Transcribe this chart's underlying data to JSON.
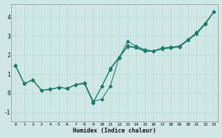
{
  "xlabel": "Humidex (Indice chaleur)",
  "background_color": "#cfe8e5",
  "grid_color": "#b8d8d5",
  "line_color": "#1e7b6e",
  "xlim": [
    -0.5,
    23.5
  ],
  "ylim": [
    -1.5,
    4.7
  ],
  "yticks": [
    -1,
    0,
    1,
    2,
    3,
    4
  ],
  "xticks": [
    0,
    1,
    2,
    3,
    4,
    5,
    6,
    7,
    8,
    9,
    10,
    11,
    12,
    13,
    14,
    15,
    16,
    17,
    18,
    19,
    20,
    21,
    22,
    23
  ],
  "series": [
    [
      1.45,
      0.5,
      0.7,
      0.15,
      0.2,
      0.3,
      0.25,
      0.45,
      0.5,
      -0.5,
      0.35,
      1.25,
      1.85,
      2.45,
      2.38,
      2.2,
      2.2,
      2.32,
      2.38,
      2.42,
      2.78,
      3.12,
      3.62,
      4.28
    ],
    [
      1.45,
      0.5,
      0.7,
      0.15,
      0.2,
      0.3,
      0.25,
      0.45,
      0.5,
      -0.5,
      0.35,
      1.3,
      1.9,
      2.5,
      2.42,
      2.25,
      2.22,
      2.35,
      2.4,
      2.45,
      2.8,
      3.18,
      3.68,
      4.28
    ],
    [
      1.45,
      0.5,
      0.7,
      0.15,
      0.2,
      0.3,
      0.25,
      0.45,
      0.55,
      -0.42,
      -0.32,
      0.38,
      1.85,
      2.72,
      2.48,
      2.28,
      2.22,
      2.38,
      2.42,
      2.48,
      2.82,
      3.18,
      3.68,
      4.28
    ]
  ]
}
